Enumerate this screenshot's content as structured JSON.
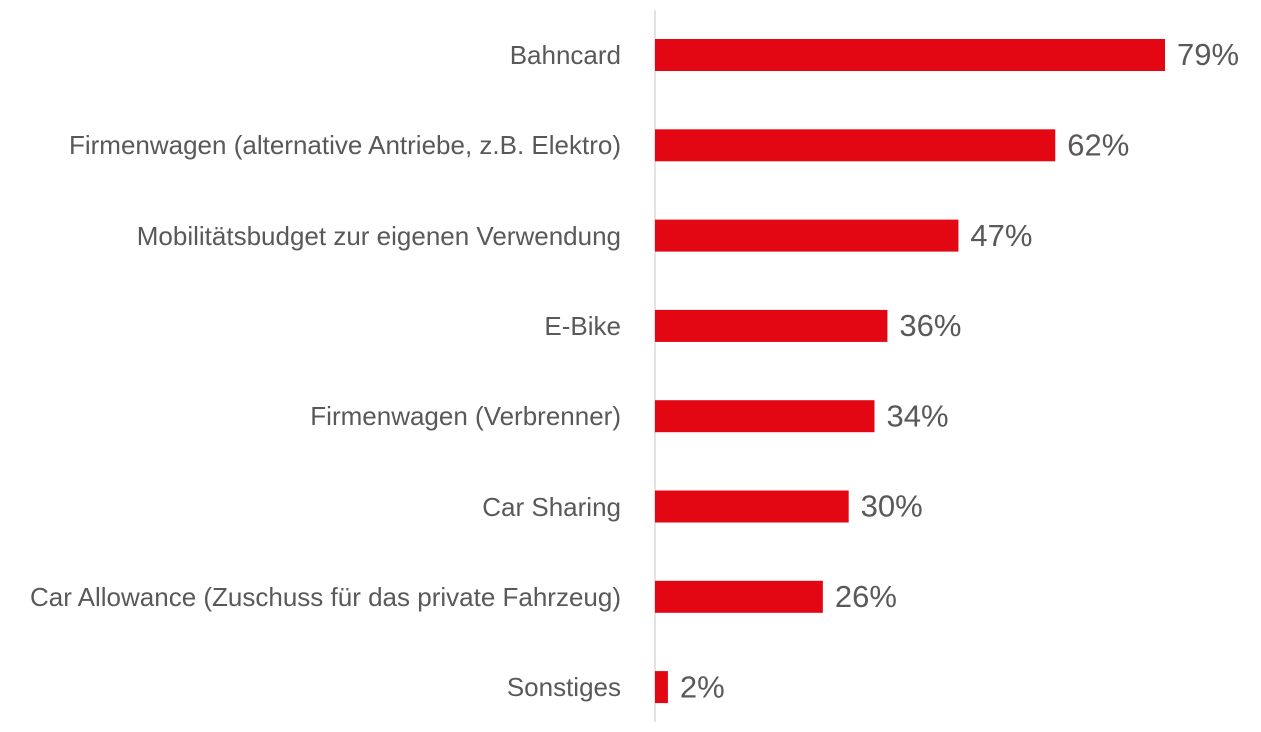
{
  "chart_data": {
    "type": "bar",
    "orientation": "horizontal",
    "categories": [
      "Bahncard",
      "Firmenwagen (alternative Antriebe, z.B. Elektro)",
      "Mobilitätsbudget zur eigenen Verwendung",
      "E-Bike",
      "Firmenwagen (Verbrenner)",
      "Car Sharing",
      "Car Allowance (Zuschuss für das private Fahrzeug)",
      "Sonstiges"
    ],
    "values": [
      79,
      62,
      47,
      36,
      34,
      30,
      26,
      2
    ],
    "value_labels": [
      "79%",
      "62%",
      "47%",
      "36%",
      "34%",
      "30%",
      "26%",
      "2%"
    ],
    "color": "#e30613"
  }
}
